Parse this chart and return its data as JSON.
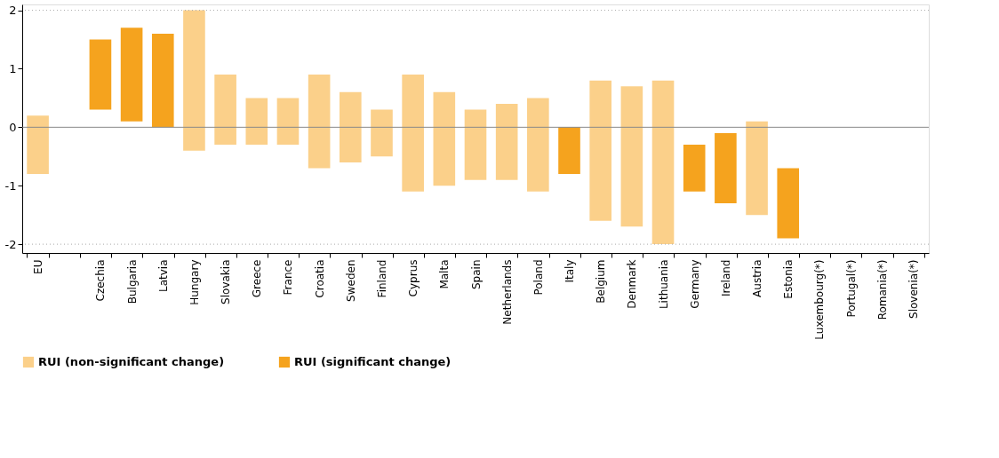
{
  "chart_data": {
    "type": "bar",
    "categories": [
      "EU",
      null,
      "Czechia",
      "Bulgaria",
      "Latvia",
      "Hungary",
      "Slovakia",
      "Greece",
      "France",
      "Croatia",
      "Sweden",
      "Finland",
      "Cyprus",
      "Malta",
      "Spain",
      "Netherlands",
      "Poland",
      "Italy",
      "Belgium",
      "Denmark",
      "Lithuania",
      "Germany",
      "Ireland",
      "Austria",
      "Estonia",
      "Luxembourg(*)",
      "Portugal(*)",
      "Romania(*)",
      "Slovenia(*)"
    ],
    "series": [
      {
        "name": "RUI (non-significant change)",
        "color": "#fbd08a",
        "base": [
          -0.8,
          null,
          null,
          null,
          null,
          -0.4,
          -0.3,
          -0.3,
          -0.3,
          -0.7,
          -0.6,
          -0.5,
          -1.1,
          -1.0,
          -0.9,
          -0.9,
          -1.1,
          null,
          -1.6,
          -1.7,
          -2.0,
          null,
          null,
          -1.5,
          null,
          null,
          null,
          null,
          null
        ],
        "values": [
          1.0,
          null,
          null,
          null,
          null,
          2.4,
          1.2,
          0.8,
          0.8,
          1.6,
          1.2,
          0.8,
          2.0,
          1.6,
          1.2,
          1.3,
          1.6,
          null,
          2.4,
          2.4,
          2.8,
          null,
          null,
          1.6,
          null,
          null,
          null,
          null,
          null
        ]
      },
      {
        "name": "RUI (significant change)",
        "color": "#f5a31e",
        "base": [
          null,
          null,
          0.3,
          0.1,
          0.0,
          null,
          null,
          null,
          null,
          null,
          null,
          null,
          null,
          null,
          null,
          null,
          null,
          -0.8,
          null,
          null,
          null,
          -1.1,
          -1.3,
          null,
          -1.9,
          null,
          null,
          null,
          null
        ],
        "values": [
          null,
          null,
          1.2,
          1.6,
          1.6,
          null,
          null,
          null,
          null,
          null,
          null,
          null,
          null,
          null,
          null,
          null,
          null,
          0.8,
          null,
          null,
          null,
          0.8,
          1.2,
          null,
          1.2,
          null,
          null,
          null,
          null
        ]
      }
    ],
    "ylim": [
      -2.15,
      2.1
    ],
    "yticks": [
      -2,
      -1,
      0,
      1,
      2
    ],
    "ref_lines": [
      {
        "axis": "y",
        "value": 0,
        "color": "#888888",
        "line_style": "solid"
      },
      {
        "axis": "y",
        "value": 2,
        "color": "#aaaaaa",
        "line_style": "dotted"
      },
      {
        "axis": "y",
        "value": -2,
        "color": "#aaaaaa",
        "line_style": "dotted"
      }
    ],
    "grid": false,
    "legend": "bottom"
  }
}
